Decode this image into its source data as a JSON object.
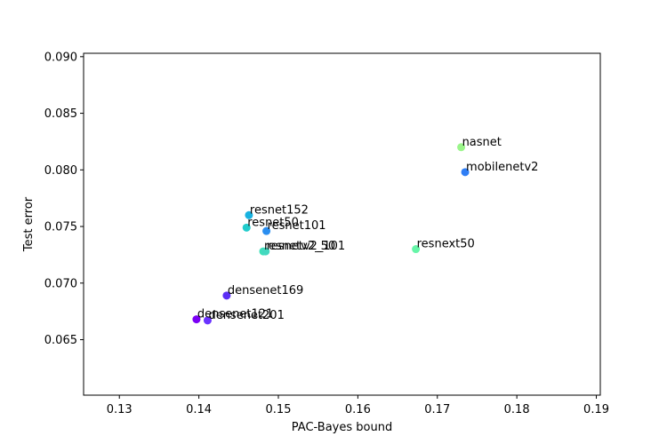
{
  "chart_data": {
    "type": "scatter",
    "title": "",
    "xlabel": "PAC-Bayes bound",
    "ylabel": "Test error",
    "xlim": [
      0.1255,
      0.1905
    ],
    "ylim": [
      0.0601,
      0.0903
    ],
    "xticks": [
      "0.13",
      "0.14",
      "0.15",
      "0.16",
      "0.17",
      "0.18",
      "0.19"
    ],
    "xtick_values": [
      0.13,
      0.14,
      0.15,
      0.16,
      0.17,
      0.18,
      0.19
    ],
    "yticks": [
      "0.065",
      "0.070",
      "0.075",
      "0.080",
      "0.085",
      "0.090"
    ],
    "ytick_values": [
      0.065,
      0.07,
      0.075,
      0.08,
      0.085,
      0.09
    ],
    "grid": false,
    "points": [
      {
        "label": "densenet121",
        "x": 0.1397,
        "y": 0.0668,
        "color": "#7a00f5"
      },
      {
        "label": "densenet201",
        "x": 0.1411,
        "y": 0.0667,
        "color": "#6a33ff"
      },
      {
        "label": "densenet169",
        "x": 0.1435,
        "y": 0.0689,
        "color": "#5b2ef5"
      },
      {
        "label": "resnet50",
        "x": 0.146,
        "y": 0.0749,
        "color": "#22cccc"
      },
      {
        "label": "resnet152",
        "x": 0.1463,
        "y": 0.076,
        "color": "#18b2e0"
      },
      {
        "label": "resnet101",
        "x": 0.1485,
        "y": 0.0746,
        "color": "#2a8ef0"
      },
      {
        "label": "resnetv2_50",
        "x": 0.1481,
        "y": 0.0728,
        "color": "#3de0b8"
      },
      {
        "label": "resnetv2_101",
        "x": 0.1484,
        "y": 0.0728,
        "color": "#44d8c0"
      },
      {
        "label": "resnext50",
        "x": 0.1673,
        "y": 0.073,
        "color": "#66f5a8"
      },
      {
        "label": "nasnet",
        "x": 0.173,
        "y": 0.082,
        "color": "#9af58a"
      },
      {
        "label": "mobilenetv2",
        "x": 0.1735,
        "y": 0.0798,
        "color": "#2f7ef5"
      }
    ]
  }
}
